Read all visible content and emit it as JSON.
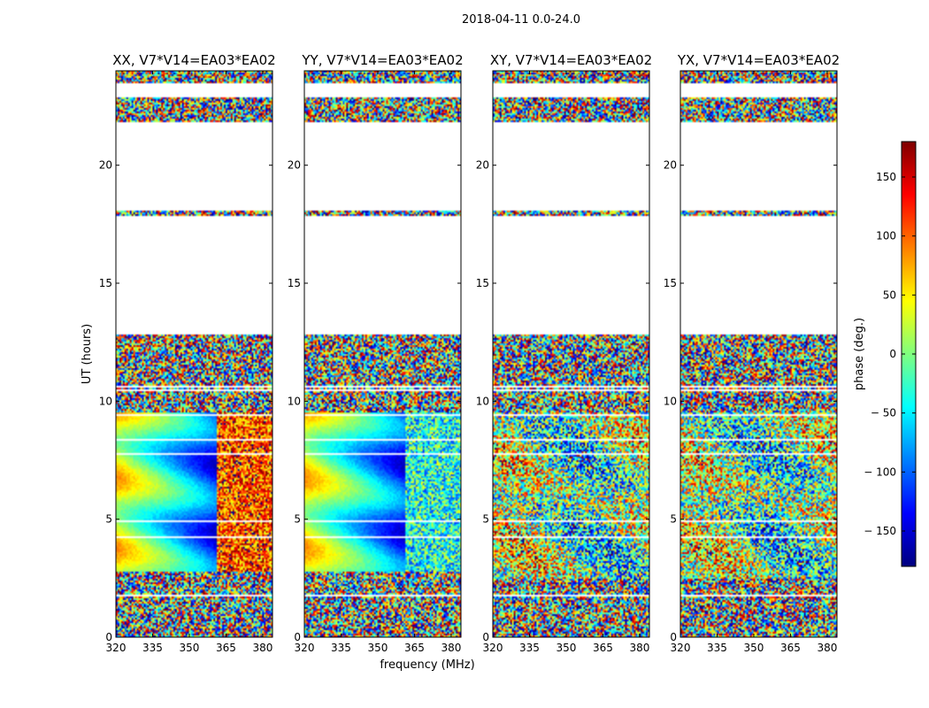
{
  "figure": {
    "suptitle": "2018-04-11 0.0-24.0",
    "ylabel": "UT (hours)",
    "xlabel": "frequency (MHz)"
  },
  "colormap": {
    "name": "jet",
    "stops": [
      "#00007f",
      "#0000ff",
      "#007fff",
      "#00ffff",
      "#7fff7f",
      "#ffff00",
      "#ff7f00",
      "#ff0000",
      "#7f0000"
    ]
  },
  "chart_data": {
    "type": "heatmap",
    "title": "2018-04-11 0.0-24.0",
    "xlabel": "frequency (MHz)",
    "ylabel": "UT (hours)",
    "xlim": [
      320,
      384
    ],
    "ylim": [
      0,
      24
    ],
    "xticks": [
      320,
      335,
      350,
      365,
      380
    ],
    "yticks": [
      0,
      5,
      10,
      15,
      20
    ],
    "panels": [
      {
        "title": "XX, V7*V14=EA03*EA02",
        "pattern": "coherent",
        "flagged_utc_ranges": [
          [
            12.8,
            17.85
          ],
          [
            18.05,
            21.8
          ],
          [
            22.85,
            23.45
          ]
        ],
        "coherent_utc_range": [
          2.8,
          9.5
        ]
      },
      {
        "title": "YY, V7*V14=EA03*EA02",
        "pattern": "coherent",
        "flagged_utc_ranges": [
          [
            12.8,
            17.85
          ],
          [
            18.05,
            21.8
          ],
          [
            22.85,
            23.45
          ]
        ],
        "coherent_utc_range": [
          2.8,
          9.5
        ]
      },
      {
        "title": "XY, V7*V14=EA03*EA02",
        "pattern": "noise",
        "flagged_utc_ranges": [
          [
            12.8,
            17.85
          ],
          [
            18.05,
            21.8
          ],
          [
            22.85,
            23.45
          ]
        ]
      },
      {
        "title": "YX, V7*V14=EA03*EA02",
        "pattern": "noise",
        "flagged_utc_ranges": [
          [
            12.8,
            17.85
          ],
          [
            18.05,
            21.8
          ],
          [
            22.85,
            23.45
          ]
        ]
      }
    ],
    "colorbar": {
      "label": "phase (deg.)",
      "range": [
        -180,
        180
      ],
      "ticks": [
        150,
        100,
        50,
        0,
        -50,
        -100,
        -150
      ],
      "tick_labels": [
        "150",
        "100",
        "50",
        "0",
        "− 50",
        "− 100",
        "− 150"
      ]
    }
  }
}
